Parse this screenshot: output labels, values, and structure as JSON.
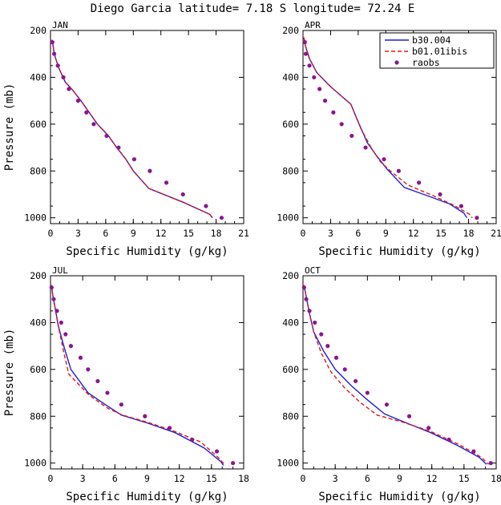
{
  "figure": {
    "title": "Diego Garcia   latitude= 7.18 S longitude= 72.24 E"
  },
  "legend": {
    "entries": [
      "b30.004",
      "b01.01ibis",
      "raobs"
    ],
    "colors": {
      "b30.004": "#1f1fd6",
      "b01.01ibis": "#e01818",
      "raobs": "#8b178b"
    }
  },
  "chart_data": [
    {
      "type": "line",
      "label": "JAN",
      "xlabel": "Specific Humidity (g/kg)",
      "ylabel": "Pressure (mb)",
      "xlim": [
        0,
        21
      ],
      "ylim": [
        1025,
        200
      ],
      "xticks": [
        0,
        3,
        6,
        9,
        12,
        15,
        18,
        21
      ],
      "yticks": [
        200,
        400,
        600,
        800,
        1000
      ],
      "series": [
        {
          "name": "b30.004",
          "style": "solid",
          "points": [
            [
              0.2,
              240
            ],
            [
              0.4,
              300
            ],
            [
              0.9,
              360
            ],
            [
              1.6,
              420
            ],
            [
              2.3,
              450
            ],
            [
              3.3,
              500
            ],
            [
              4.2,
              550
            ],
            [
              5.1,
              600
            ],
            [
              6.3,
              650
            ],
            [
              7.2,
              700
            ],
            [
              8.2,
              750
            ],
            [
              9.0,
              800
            ],
            [
              10.7,
              875
            ],
            [
              14.5,
              935
            ],
            [
              17.3,
              985
            ],
            [
              17.6,
              1000
            ]
          ]
        },
        {
          "name": "b01.01ibis",
          "style": "dashed",
          "points": [
            [
              0.2,
              240
            ],
            [
              0.4,
              300
            ],
            [
              0.9,
              360
            ],
            [
              1.6,
              420
            ],
            [
              2.3,
              450
            ],
            [
              3.3,
              500
            ],
            [
              4.2,
              550
            ],
            [
              5.1,
              600
            ],
            [
              6.3,
              650
            ],
            [
              7.2,
              700
            ],
            [
              8.2,
              750
            ],
            [
              9.0,
              800
            ],
            [
              10.7,
              875
            ],
            [
              14.5,
              935
            ],
            [
              17.3,
              985
            ],
            [
              17.6,
              1000
            ]
          ]
        },
        {
          "name": "raobs",
          "style": "markers",
          "points": [
            [
              0.2,
              250
            ],
            [
              0.4,
              300
            ],
            [
              0.8,
              350
            ],
            [
              1.4,
              400
            ],
            [
              2.0,
              450
            ],
            [
              3.0,
              500
            ],
            [
              3.9,
              550
            ],
            [
              4.7,
              600
            ],
            [
              6.1,
              650
            ],
            [
              7.4,
              700
            ],
            [
              9.1,
              750
            ],
            [
              10.8,
              800
            ],
            [
              12.6,
              850
            ],
            [
              14.4,
              900
            ],
            [
              16.9,
              950
            ],
            [
              18.6,
              1000
            ]
          ]
        }
      ]
    },
    {
      "type": "line",
      "label": "APR",
      "xlabel": "Specific Humidity (g/kg)",
      "ylabel": "",
      "xlim": [
        0,
        21
      ],
      "ylim": [
        1025,
        200
      ],
      "xticks": [
        0,
        3,
        6,
        9,
        12,
        15,
        18,
        21
      ],
      "yticks": [
        200,
        400,
        600,
        800,
        1000
      ],
      "series": [
        {
          "name": "b30.004",
          "style": "solid",
          "points": [
            [
              0.1,
              230
            ],
            [
              0.3,
              270
            ],
            [
              0.7,
              320
            ],
            [
              1.5,
              380
            ],
            [
              3.0,
              440
            ],
            [
              5.2,
              515
            ],
            [
              6.1,
              600
            ],
            [
              7.0,
              680
            ],
            [
              7.9,
              730
            ],
            [
              9.1,
              790
            ],
            [
              11.0,
              870
            ],
            [
              13.8,
              910
            ],
            [
              15.9,
              940
            ],
            [
              17.5,
              980
            ],
            [
              17.8,
              1000
            ]
          ]
        },
        {
          "name": "b01.01ibis",
          "style": "dashed",
          "points": [
            [
              0.1,
              230
            ],
            [
              0.3,
              270
            ],
            [
              0.7,
              320
            ],
            [
              1.5,
              380
            ],
            [
              3.0,
              440
            ],
            [
              5.2,
              515
            ],
            [
              6.3,
              620
            ],
            [
              7.4,
              700
            ],
            [
              8.4,
              760
            ],
            [
              9.5,
              800
            ],
            [
              11.4,
              860
            ],
            [
              14.1,
              905
            ],
            [
              16.3,
              945
            ],
            [
              18.1,
              985
            ],
            [
              18.4,
              1000
            ]
          ]
        },
        {
          "name": "raobs",
          "style": "markers",
          "points": [
            [
              0.2,
              250
            ],
            [
              0.3,
              300
            ],
            [
              0.7,
              350
            ],
            [
              1.2,
              400
            ],
            [
              1.8,
              450
            ],
            [
              2.4,
              500
            ],
            [
              3.3,
              550
            ],
            [
              4.2,
              600
            ],
            [
              5.3,
              650
            ],
            [
              6.8,
              700
            ],
            [
              8.8,
              750
            ],
            [
              10.4,
              800
            ],
            [
              12.6,
              850
            ],
            [
              14.9,
              900
            ],
            [
              17.2,
              950
            ],
            [
              18.9,
              1000
            ]
          ]
        }
      ]
    },
    {
      "type": "line",
      "label": "JUL",
      "xlabel": "Specific Humidity (g/kg)",
      "ylabel": "Pressure (mb)",
      "xlim": [
        0,
        18
      ],
      "ylim": [
        1025,
        200
      ],
      "xticks": [
        0,
        3,
        6,
        9,
        12,
        15,
        18
      ],
      "yticks": [
        200,
        400,
        600,
        800,
        1000
      ],
      "series": [
        {
          "name": "b30.004",
          "style": "solid",
          "points": [
            [
              0.1,
              240
            ],
            [
              0.2,
              280
            ],
            [
              0.4,
              330
            ],
            [
              0.7,
              410
            ],
            [
              1.3,
              510
            ],
            [
              1.9,
              600
            ],
            [
              3.5,
              700
            ],
            [
              5.1,
              750
            ],
            [
              6.6,
              795
            ],
            [
              9.1,
              830
            ],
            [
              11.6,
              870
            ],
            [
              14.3,
              935
            ],
            [
              15.9,
              995
            ],
            [
              16.1,
              1010
            ]
          ]
        },
        {
          "name": "b01.01ibis",
          "style": "dashed",
          "points": [
            [
              0.1,
              240
            ],
            [
              0.2,
              280
            ],
            [
              0.4,
              330
            ],
            [
              0.8,
              430
            ],
            [
              1.2,
              520
            ],
            [
              1.7,
              620
            ],
            [
              3.6,
              710
            ],
            [
              5.3,
              765
            ],
            [
              6.7,
              795
            ],
            [
              9.0,
              825
            ],
            [
              11.3,
              860
            ],
            [
              14.0,
              910
            ],
            [
              15.6,
              975
            ],
            [
              16.3,
              1010
            ]
          ]
        },
        {
          "name": "raobs",
          "style": "markers",
          "points": [
            [
              0.1,
              250
            ],
            [
              0.3,
              300
            ],
            [
              0.6,
              350
            ],
            [
              1.0,
              400
            ],
            [
              1.4,
              450
            ],
            [
              1.9,
              500
            ],
            [
              2.8,
              550
            ],
            [
              3.5,
              600
            ],
            [
              4.4,
              650
            ],
            [
              5.3,
              700
            ],
            [
              6.6,
              750
            ],
            [
              8.8,
              800
            ],
            [
              11.1,
              850
            ],
            [
              13.2,
              900
            ],
            [
              15.5,
              950
            ],
            [
              17.0,
              1000
            ]
          ]
        }
      ]
    },
    {
      "type": "line",
      "label": "OCT",
      "xlabel": "Specific Humidity (g/kg)",
      "ylabel": "",
      "xlim": [
        0,
        18
      ],
      "ylim": [
        1025,
        200
      ],
      "xticks": [
        0,
        3,
        6,
        9,
        12,
        15,
        18
      ],
      "yticks": [
        200,
        400,
        600,
        800,
        1000
      ],
      "series": [
        {
          "name": "b30.004",
          "style": "solid",
          "points": [
            [
              0.1,
              240
            ],
            [
              0.3,
              290
            ],
            [
              0.6,
              360
            ],
            [
              1.0,
              440
            ],
            [
              1.9,
              520
            ],
            [
              3.0,
              600
            ],
            [
              4.5,
              670
            ],
            [
              6.0,
              730
            ],
            [
              7.6,
              790
            ],
            [
              9.7,
              830
            ],
            [
              11.9,
              870
            ],
            [
              14.4,
              925
            ],
            [
              16.4,
              975
            ],
            [
              17.1,
              1005
            ]
          ]
        },
        {
          "name": "b01.01ibis",
          "style": "dashed",
          "points": [
            [
              0.1,
              240
            ],
            [
              0.3,
              290
            ],
            [
              0.6,
              360
            ],
            [
              1.0,
              440
            ],
            [
              1.7,
              530
            ],
            [
              2.6,
              610
            ],
            [
              3.9,
              680
            ],
            [
              5.3,
              740
            ],
            [
              6.9,
              795
            ],
            [
              9.3,
              825
            ],
            [
              11.9,
              865
            ],
            [
              14.5,
              920
            ],
            [
              16.6,
              975
            ],
            [
              17.3,
              1005
            ]
          ]
        },
        {
          "name": "raobs",
          "style": "markers",
          "points": [
            [
              0.1,
              250
            ],
            [
              0.3,
              300
            ],
            [
              0.6,
              350
            ],
            [
              1.1,
              400
            ],
            [
              1.7,
              450
            ],
            [
              2.3,
              500
            ],
            [
              3.1,
              550
            ],
            [
              3.9,
              600
            ],
            [
              4.9,
              650
            ],
            [
              6.0,
              700
            ],
            [
              7.8,
              750
            ],
            [
              9.9,
              800
            ],
            [
              11.7,
              850
            ],
            [
              13.6,
              900
            ],
            [
              15.9,
              950
            ],
            [
              17.5,
              1000
            ]
          ]
        }
      ]
    }
  ]
}
